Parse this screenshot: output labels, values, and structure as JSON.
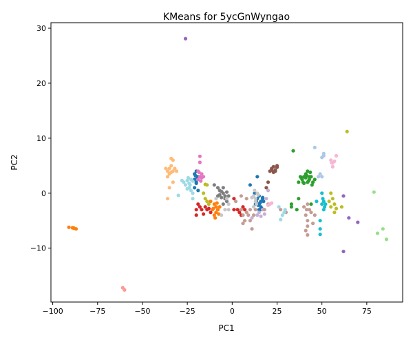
{
  "chart_data": {
    "type": "scatter",
    "title": "KMeans for 5ycGnWyngao",
    "xlabel": "PC1",
    "ylabel": "PC2",
    "xlim": [
      -101,
      95
    ],
    "ylim": [
      -19.8,
      31
    ],
    "xticks": [
      -100,
      -75,
      -50,
      -25,
      0,
      25,
      50,
      75
    ],
    "yticks": [
      -10,
      0,
      10,
      20,
      30
    ],
    "xtick_labels": [
      "−100",
      "−75",
      "−50",
      "−25",
      "0",
      "25",
      "50",
      "75"
    ],
    "ytick_labels": [
      "−10",
      "0",
      "10",
      "20",
      "30"
    ],
    "grid": false,
    "legend": "none",
    "series": [
      {
        "color": "#1f77b4",
        "points": [
          [
            -21,
            3.5
          ],
          [
            -20,
            4
          ],
          [
            -19,
            3
          ],
          [
            -20,
            2
          ],
          [
            -21,
            1
          ],
          [
            -19,
            0.5
          ],
          [
            -20,
            1.8
          ],
          [
            -19.5,
            2.8
          ],
          [
            -20.5,
            3.2
          ],
          [
            -21,
            2.5
          ],
          [
            10,
            1.5
          ],
          [
            12.5,
            0
          ],
          [
            14,
            -1
          ],
          [
            15,
            -2
          ],
          [
            16,
            -2.5
          ],
          [
            16,
            -1.5
          ],
          [
            17,
            -0.8
          ],
          [
            17,
            -1
          ],
          [
            14,
            3
          ],
          [
            15,
            -3
          ],
          [
            13,
            -2
          ],
          [
            16,
            -3
          ],
          [
            14.5,
            -2.2
          ],
          [
            15.5,
            -1.8
          ],
          [
            16.5,
            -2.8
          ],
          [
            13.5,
            -1.5
          ],
          [
            15,
            -0.5
          ],
          [
            17.5,
            -1.5
          ]
        ]
      },
      {
        "color": "#ff7f0e",
        "points": [
          [
            -91,
            -6.2
          ],
          [
            -89,
            -6.3
          ],
          [
            -88,
            -6.4
          ],
          [
            -87,
            -6.5
          ],
          [
            -88.5,
            -6.3
          ],
          [
            -10,
            -2
          ],
          [
            -9,
            -2.5
          ],
          [
            -8,
            -3
          ],
          [
            -10,
            -4
          ],
          [
            -9,
            -3.5
          ],
          [
            -11,
            -3
          ],
          [
            -7,
            -2.5
          ],
          [
            -8.5,
            -1.8
          ],
          [
            -9.5,
            -4.5
          ],
          [
            -10.5,
            -2.8
          ],
          [
            -7.5,
            -3.8
          ],
          [
            -12,
            -1.5
          ]
        ]
      },
      {
        "color": "#2ca02c",
        "points": [
          [
            34,
            7.7
          ],
          [
            37,
            2
          ],
          [
            38,
            3
          ],
          [
            39,
            2.5
          ],
          [
            40,
            3
          ],
          [
            41,
            3.5
          ],
          [
            42,
            2
          ],
          [
            43,
            3
          ],
          [
            42,
            4
          ],
          [
            44,
            3
          ],
          [
            43,
            2.5
          ],
          [
            41,
            2.8
          ],
          [
            40,
            1.8
          ],
          [
            45,
            2
          ],
          [
            46,
            2.5
          ],
          [
            44.5,
            1.5
          ],
          [
            43.5,
            3.8
          ],
          [
            42.5,
            2.2
          ],
          [
            41.5,
            3.2
          ],
          [
            39.5,
            2
          ],
          [
            38.5,
            2.8
          ],
          [
            33,
            -2
          ],
          [
            36,
            -3
          ],
          [
            37,
            -1
          ],
          [
            33,
            -2.5
          ],
          [
            44,
            -2
          ]
        ]
      },
      {
        "color": "#d62728",
        "points": [
          [
            -20,
            -3
          ],
          [
            -18,
            -2.5
          ],
          [
            -17,
            -3
          ],
          [
            -15,
            -2.5
          ],
          [
            -14,
            -3
          ],
          [
            -13,
            -2.8
          ],
          [
            -12,
            -3.5
          ],
          [
            -16,
            -3.8
          ],
          [
            -19,
            -2
          ],
          [
            -20,
            -4
          ],
          [
            1,
            -1
          ],
          [
            3,
            -3
          ],
          [
            4,
            -3.5
          ],
          [
            6,
            -2.5
          ],
          [
            7,
            -3
          ],
          [
            1,
            -3
          ],
          [
            5,
            -4
          ]
        ]
      },
      {
        "color": "#9467bd",
        "points": [
          [
            -26,
            28.1
          ],
          [
            65,
            -4.5
          ],
          [
            70,
            -5.3
          ],
          [
            62,
            -10.6
          ],
          [
            62,
            -0.5
          ]
        ]
      },
      {
        "color": "#8c564b",
        "points": [
          [
            21,
            4
          ],
          [
            22,
            4.5
          ],
          [
            23,
            4.8
          ],
          [
            24,
            4.2
          ],
          [
            25,
            4.7
          ],
          [
            24,
            4
          ],
          [
            23,
            3.8
          ],
          [
            25,
            5
          ],
          [
            22,
            4.2
          ],
          [
            20,
            2
          ],
          [
            19,
            1
          ]
        ]
      },
      {
        "color": "#e377c2",
        "points": [
          [
            -18,
            6.7
          ],
          [
            -18,
            5.6
          ],
          [
            -19,
            4
          ],
          [
            -17,
            3.5
          ],
          [
            -18,
            3
          ],
          [
            -19,
            2.5
          ],
          [
            -17,
            2.8
          ],
          [
            -18.5,
            3.8
          ],
          [
            -17.5,
            2.2
          ],
          [
            -16,
            3
          ]
        ]
      },
      {
        "color": "#7f7f7f",
        "points": [
          [
            -10,
            1.5
          ],
          [
            -8,
            1
          ],
          [
            -7,
            0.5
          ],
          [
            -5,
            0
          ],
          [
            -4,
            -0.5
          ],
          [
            -6,
            -0.8
          ],
          [
            -3,
            0.2
          ],
          [
            -5,
            1
          ],
          [
            -6,
            0.3
          ],
          [
            -4,
            -1
          ],
          [
            -7,
            -0.3
          ],
          [
            -2,
            -0.5
          ],
          [
            -3,
            -1.5
          ],
          [
            -8,
            -0.5
          ],
          [
            -5,
            -2
          ]
        ]
      },
      {
        "color": "#bcbd22",
        "points": [
          [
            64,
            11.2
          ],
          [
            -15,
            1.6
          ],
          [
            -14,
            1.5
          ],
          [
            -16,
            0
          ],
          [
            -15,
            -1
          ],
          [
            -14,
            -1.5
          ],
          [
            -13,
            -2
          ],
          [
            55,
            0
          ],
          [
            56,
            -1
          ],
          [
            57,
            -2
          ],
          [
            55,
            -2.5
          ],
          [
            57,
            -3.5
          ],
          [
            58,
            -2.8
          ],
          [
            61,
            -2.5
          ],
          [
            54,
            -1.5
          ]
        ]
      },
      {
        "color": "#17becf",
        "points": [
          [
            47,
            -1.5
          ],
          [
            49,
            -5
          ],
          [
            49,
            -6.5
          ],
          [
            49,
            -7.5
          ],
          [
            50,
            -2
          ],
          [
            51,
            -1.5
          ],
          [
            51,
            -3
          ],
          [
            50,
            0
          ],
          [
            52,
            -2
          ],
          [
            50.5,
            -1
          ],
          [
            51.5,
            -2.5
          ]
        ]
      },
      {
        "color": "#aec7e8",
        "points": [
          [
            46,
            8.3
          ],
          [
            50,
            6.5
          ],
          [
            51,
            7.2
          ],
          [
            51,
            6.8
          ],
          [
            48,
            3
          ],
          [
            50,
            3
          ],
          [
            49,
            3.5
          ]
        ]
      },
      {
        "color": "#ffbb78",
        "points": [
          [
            -37,
            4.5
          ],
          [
            -36,
            4
          ],
          [
            -35,
            4.5
          ],
          [
            -34,
            3.8
          ],
          [
            -33,
            4
          ],
          [
            -35,
            3.5
          ],
          [
            -32,
            4.5
          ],
          [
            -34,
            5
          ],
          [
            -31,
            4
          ],
          [
            -36,
            3
          ],
          [
            -34,
            6.3
          ],
          [
            -33,
            6
          ],
          [
            -35,
            1
          ],
          [
            -33,
            2
          ],
          [
            -36,
            -1
          ]
        ]
      },
      {
        "color": "#98df8a",
        "points": [
          [
            79,
            0.2
          ],
          [
            81,
            -7.3
          ],
          [
            84,
            -6.5
          ],
          [
            86,
            -8.4
          ]
        ]
      },
      {
        "color": "#ff9896",
        "points": [
          [
            -61,
            -17.2
          ],
          [
            -60,
            -17.6
          ]
        ]
      },
      {
        "color": "#c5b0d5",
        "points": [
          [
            11,
            -4.5
          ],
          [
            14,
            -4
          ],
          [
            15,
            -3.5
          ],
          [
            17,
            -3
          ],
          [
            18,
            -3.8
          ],
          [
            19,
            -1
          ],
          [
            20,
            0.5
          ],
          [
            16,
            -4.2
          ]
        ]
      },
      {
        "color": "#c49c94",
        "points": [
          [
            5,
            -3
          ],
          [
            6,
            -4
          ],
          [
            7,
            -5
          ],
          [
            8,
            -3.5
          ],
          [
            9,
            -4
          ],
          [
            10,
            -5
          ],
          [
            11,
            -6.5
          ],
          [
            12,
            -4
          ],
          [
            13,
            -3
          ],
          [
            6,
            -5.5
          ],
          [
            2,
            -1.5
          ],
          [
            5,
            -0.5
          ],
          [
            8,
            -1
          ],
          [
            10,
            -3
          ],
          [
            27,
            -3
          ],
          [
            30,
            -3.5
          ],
          [
            41,
            -4
          ],
          [
            42,
            -5
          ],
          [
            42,
            -7.6
          ],
          [
            41,
            -6.8
          ],
          [
            42,
            -6
          ],
          [
            41.5,
            -3
          ],
          [
            40,
            -2.5
          ],
          [
            42,
            -2
          ],
          [
            44,
            -3.5
          ],
          [
            45,
            -5.5
          ],
          [
            43,
            -3
          ],
          [
            46,
            -4
          ],
          [
            18,
            -3
          ],
          [
            20,
            -2
          ]
        ]
      },
      {
        "color": "#f7b6d2",
        "points": [
          [
            21,
            -2
          ],
          [
            22,
            -1.8
          ],
          [
            20,
            -2.2
          ],
          [
            55,
            6
          ],
          [
            56,
            5.5
          ],
          [
            57,
            5.8
          ],
          [
            58,
            6.8
          ],
          [
            56,
            4.8
          ],
          [
            55.5,
            5.5
          ]
        ]
      },
      {
        "color": "#c7c7c7",
        "points": [
          [
            13,
            -1
          ],
          [
            12,
            -0.5
          ],
          [
            14,
            0
          ],
          [
            13,
            -1.5
          ],
          [
            12,
            -2.5
          ],
          [
            11,
            -0.8
          ],
          [
            14.5,
            -0.3
          ],
          [
            13.5,
            -2
          ],
          [
            12.5,
            0.5
          ],
          [
            -4,
            -3
          ],
          [
            -2,
            -2
          ],
          [
            -3,
            -1
          ],
          [
            -6,
            -4
          ],
          [
            -9,
            -1
          ],
          [
            -2,
            -3
          ]
        ]
      },
      {
        "color": "#9edae5",
        "points": [
          [
            -30,
            -0.4
          ],
          [
            -28,
            2.3
          ],
          [
            -27,
            2
          ],
          [
            -25,
            2.3
          ],
          [
            -24,
            1.8
          ],
          [
            -23,
            2.5
          ],
          [
            -22,
            2.2
          ],
          [
            -26,
            1.5
          ],
          [
            -24,
            1
          ],
          [
            -23,
            0.5
          ],
          [
            -22,
            0
          ],
          [
            -25,
            0.8
          ],
          [
            -22,
            -1
          ],
          [
            -24.5,
            2.8
          ],
          [
            -23.5,
            1.5
          ],
          [
            28,
            -4
          ],
          [
            29,
            -3.5
          ],
          [
            27,
            -4.8
          ],
          [
            29.5,
            -3
          ],
          [
            26,
            -2.5
          ]
        ]
      }
    ]
  }
}
